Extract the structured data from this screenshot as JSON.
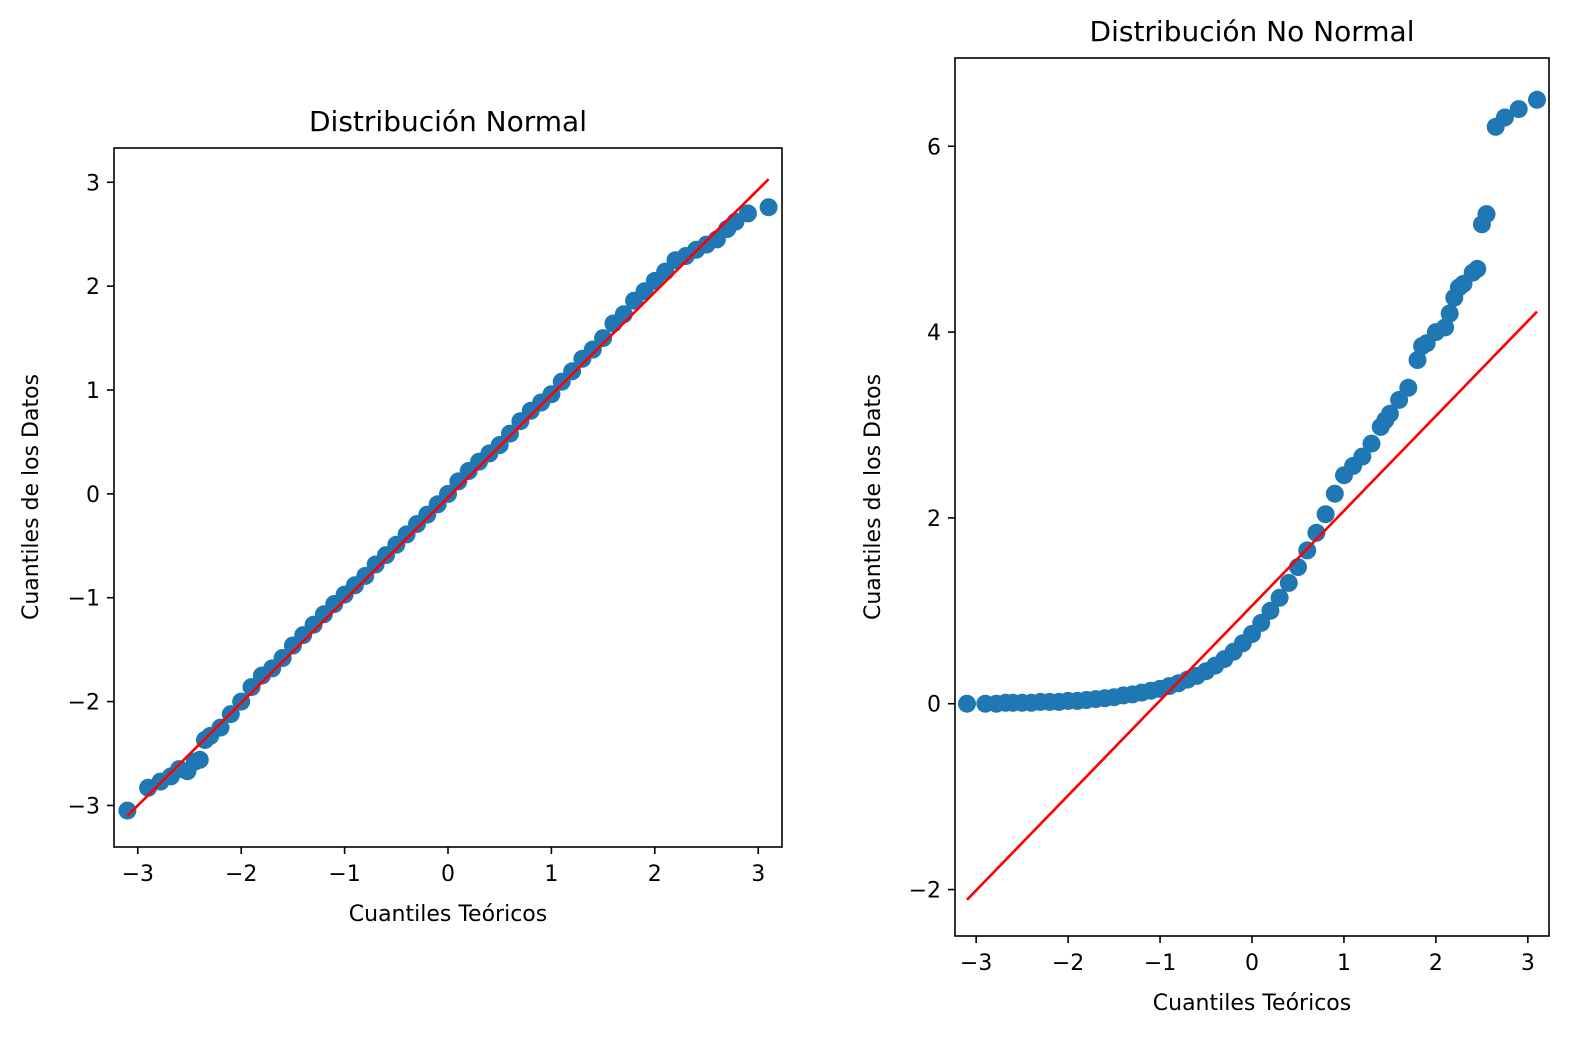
{
  "colors": {
    "points": "#1f77b4",
    "reference_line": "#ff0000",
    "axes": "#000000",
    "background": "#ffffff"
  },
  "chart_data": [
    {
      "type": "scatter",
      "kind": "qq-plot",
      "title": "Distribución Normal",
      "xlabel": "Cuantiles Teóricos",
      "ylabel": "Cuantiles de los Datos",
      "xlim": [
        -3.23,
        3.23
      ],
      "ylim": [
        -3.4,
        3.33
      ],
      "xticks": [
        -3,
        -2,
        -1,
        0,
        1,
        2,
        3
      ],
      "xtick_labels": [
        "−3",
        "−2",
        "−1",
        "0",
        "1",
        "2",
        "3"
      ],
      "yticks": [
        -3,
        -2,
        -1,
        0,
        1,
        2,
        3
      ],
      "ytick_labels": [
        "−3",
        "−2",
        "−1",
        "0",
        "1",
        "2",
        "3"
      ],
      "grid": false,
      "series": [
        {
          "role": "sample_quantiles",
          "x": [
            -3.1,
            -2.9,
            -2.78,
            -2.68,
            -2.6,
            -2.52,
            -2.45,
            -2.4,
            -2.35,
            -2.3,
            -2.2,
            -2.1,
            -2.0,
            -1.9,
            -1.8,
            -1.7,
            -1.6,
            -1.5,
            -1.4,
            -1.3,
            -1.2,
            -1.1,
            -1.0,
            -0.9,
            -0.8,
            -0.7,
            -0.6,
            -0.5,
            -0.4,
            -0.3,
            -0.2,
            -0.1,
            0.0,
            0.1,
            0.2,
            0.3,
            0.4,
            0.5,
            0.6,
            0.7,
            0.8,
            0.9,
            1.0,
            1.1,
            1.2,
            1.3,
            1.4,
            1.5,
            1.6,
            1.7,
            1.8,
            1.9,
            2.0,
            2.1,
            2.2,
            2.3,
            2.4,
            2.5,
            2.6,
            2.7,
            2.78,
            2.9,
            3.1
          ],
          "y": [
            -3.05,
            -2.83,
            -2.77,
            -2.72,
            -2.65,
            -2.67,
            -2.58,
            -2.56,
            -2.37,
            -2.33,
            -2.25,
            -2.12,
            -2.0,
            -1.86,
            -1.75,
            -1.68,
            -1.58,
            -1.46,
            -1.36,
            -1.26,
            -1.16,
            -1.06,
            -0.97,
            -0.88,
            -0.79,
            -0.68,
            -0.59,
            -0.49,
            -0.39,
            -0.29,
            -0.2,
            -0.1,
            0.0,
            0.12,
            0.22,
            0.31,
            0.39,
            0.47,
            0.58,
            0.7,
            0.8,
            0.88,
            0.96,
            1.08,
            1.18,
            1.3,
            1.39,
            1.5,
            1.64,
            1.73,
            1.86,
            1.95,
            2.05,
            2.14,
            2.25,
            2.29,
            2.35,
            2.4,
            2.45,
            2.55,
            2.62,
            2.7,
            2.76
          ]
        },
        {
          "role": "reference_line",
          "x": [
            -3.1,
            3.1
          ],
          "y": [
            -3.1,
            3.03
          ]
        }
      ]
    },
    {
      "type": "scatter",
      "kind": "qq-plot",
      "title": "Distribución No Normal",
      "xlabel": "Cuantiles Teóricos",
      "ylabel": "Cuantiles de los Datos",
      "xlim": [
        -3.23,
        3.23
      ],
      "ylim": [
        -2.5,
        6.95
      ],
      "xticks": [
        -3,
        -2,
        -1,
        0,
        1,
        2,
        3
      ],
      "xtick_labels": [
        "−3",
        "−2",
        "−1",
        "0",
        "1",
        "2",
        "3"
      ],
      "yticks": [
        -2,
        0,
        2,
        4,
        6
      ],
      "ytick_labels": [
        "−2",
        "0",
        "2",
        "4",
        "6"
      ],
      "grid": false,
      "series": [
        {
          "role": "sample_quantiles",
          "x": [
            -3.1,
            -2.9,
            -2.78,
            -2.68,
            -2.6,
            -2.5,
            -2.4,
            -2.3,
            -2.2,
            -2.1,
            -2.0,
            -1.9,
            -1.8,
            -1.7,
            -1.6,
            -1.5,
            -1.4,
            -1.3,
            -1.2,
            -1.1,
            -1.0,
            -0.9,
            -0.8,
            -0.7,
            -0.6,
            -0.5,
            -0.4,
            -0.3,
            -0.2,
            -0.1,
            0.0,
            0.1,
            0.2,
            0.3,
            0.4,
            0.5,
            0.6,
            0.7,
            0.8,
            0.9,
            1.0,
            1.1,
            1.2,
            1.3,
            1.4,
            1.45,
            1.5,
            1.6,
            1.7,
            1.8,
            1.85,
            1.9,
            2.0,
            2.1,
            2.15,
            2.2,
            2.25,
            2.3,
            2.4,
            2.45,
            2.5,
            2.55,
            2.65,
            2.75,
            2.9,
            3.1
          ],
          "y": [
            0.0,
            0.0,
            0.0,
            0.01,
            0.01,
            0.01,
            0.01,
            0.02,
            0.02,
            0.02,
            0.03,
            0.03,
            0.04,
            0.05,
            0.06,
            0.07,
            0.09,
            0.1,
            0.12,
            0.14,
            0.16,
            0.19,
            0.22,
            0.26,
            0.3,
            0.35,
            0.41,
            0.48,
            0.56,
            0.65,
            0.75,
            0.87,
            1.0,
            1.14,
            1.3,
            1.47,
            1.65,
            1.84,
            2.04,
            2.26,
            2.46,
            2.56,
            2.66,
            2.8,
            2.98,
            3.05,
            3.12,
            3.27,
            3.4,
            3.7,
            3.85,
            3.88,
            4.0,
            4.05,
            4.2,
            4.37,
            4.48,
            4.52,
            4.64,
            4.68,
            5.16,
            5.27,
            6.21,
            6.31,
            6.4,
            6.5
          ]
        },
        {
          "role": "reference_line",
          "x": [
            -3.1,
            3.1
          ],
          "y": [
            -2.11,
            4.22
          ]
        }
      ]
    }
  ]
}
